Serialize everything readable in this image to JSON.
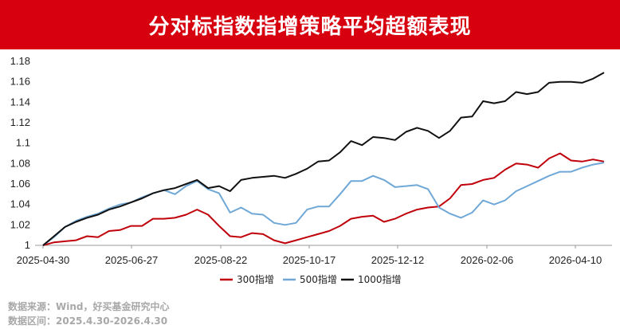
{
  "title": "分对标指数指增策略平均超额表现",
  "footnotes": {
    "source": "数据来源：Wind，好买基金研究中心",
    "range": "数据区间：2025.4.30-2026.4.30"
  },
  "chart_data": {
    "type": "line",
    "title": "分对标指数指增策略平均超额表现",
    "ylim": [
      1.0,
      1.18
    ],
    "yticks": [
      "1",
      "1.02",
      "1.04",
      "1.06",
      "1.08",
      "1.1",
      "1.12",
      "1.14",
      "1.16",
      "1.18"
    ],
    "xticks": [
      "2025-04-30",
      "2025-06-27",
      "2025-08-22",
      "2025-10-17",
      "2025-12-12",
      "2026-02-06",
      "2026-04-10"
    ],
    "legend_position": "bottom",
    "series": [
      {
        "name": "300指增",
        "color": "#c0000a",
        "values": [
          1.0,
          1.003,
          1.004,
          1.005,
          1.009,
          1.008,
          1.014,
          1.015,
          1.019,
          1.019,
          1.026,
          1.026,
          1.027,
          1.03,
          1.035,
          1.03,
          1.019,
          1.009,
          1.008,
          1.012,
          1.011,
          1.005,
          1.002,
          1.005,
          1.008,
          1.011,
          1.014,
          1.019,
          1.026,
          1.028,
          1.029,
          1.023,
          1.026,
          1.031,
          1.035,
          1.037,
          1.038,
          1.046,
          1.059,
          1.06,
          1.064,
          1.066,
          1.074,
          1.08,
          1.079,
          1.076,
          1.085,
          1.09,
          1.083,
          1.082,
          1.084,
          1.082
        ]
      },
      {
        "name": "500指增",
        "color": "#6fa8d6",
        "values": [
          1.0,
          1.008,
          1.018,
          1.024,
          1.028,
          1.031,
          1.036,
          1.04,
          1.042,
          1.047,
          1.051,
          1.054,
          1.05,
          1.058,
          1.063,
          1.055,
          1.051,
          1.032,
          1.037,
          1.031,
          1.03,
          1.022,
          1.02,
          1.022,
          1.035,
          1.038,
          1.038,
          1.05,
          1.063,
          1.063,
          1.068,
          1.064,
          1.057,
          1.058,
          1.059,
          1.055,
          1.037,
          1.031,
          1.027,
          1.032,
          1.044,
          1.04,
          1.044,
          1.053,
          1.058,
          1.063,
          1.068,
          1.072,
          1.072,
          1.076,
          1.079,
          1.081
        ]
      },
      {
        "name": "1000指增",
        "color": "#111111",
        "values": [
          1.0,
          1.009,
          1.018,
          1.023,
          1.027,
          1.03,
          1.035,
          1.038,
          1.042,
          1.046,
          1.051,
          1.054,
          1.056,
          1.06,
          1.064,
          1.056,
          1.058,
          1.053,
          1.064,
          1.066,
          1.067,
          1.068,
          1.066,
          1.07,
          1.075,
          1.082,
          1.083,
          1.091,
          1.102,
          1.098,
          1.106,
          1.105,
          1.103,
          1.111,
          1.115,
          1.112,
          1.105,
          1.112,
          1.125,
          1.126,
          1.141,
          1.139,
          1.141,
          1.15,
          1.148,
          1.15,
          1.159,
          1.16,
          1.16,
          1.159,
          1.163,
          1.169
        ]
      }
    ]
  }
}
